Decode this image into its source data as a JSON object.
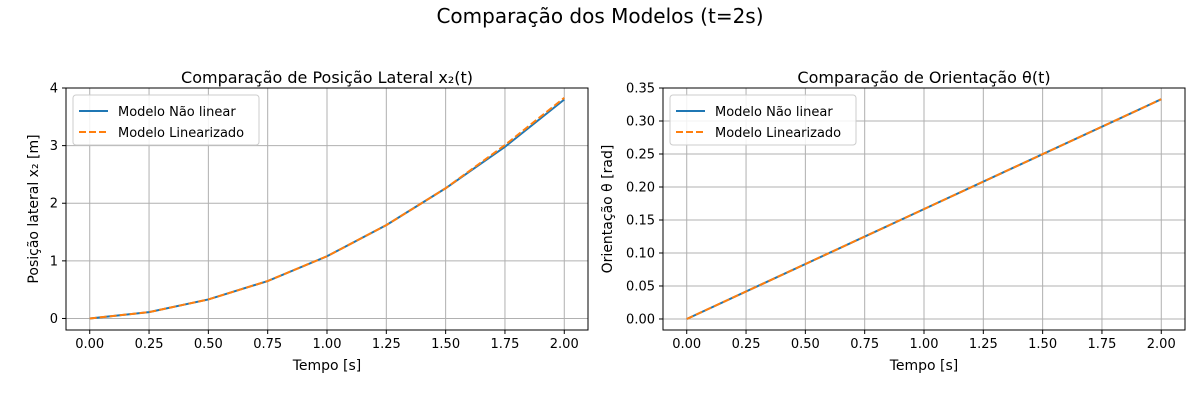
{
  "figure": {
    "title": "Comparação dos Modelos (t=2s)"
  },
  "colors": {
    "series_1": "#1f77b4",
    "series_2": "#ff7f0e",
    "grid": "#b0b0b0",
    "axes": "#000000"
  },
  "chart_data": [
    {
      "type": "line",
      "title": "Comparação de Posição Lateral x₂(t)",
      "xlabel": "Tempo [s]",
      "ylabel": "Posição lateral x₂ [m]",
      "xlim": [
        -0.1,
        2.1
      ],
      "ylim": [
        -0.2,
        4.0
      ],
      "xticks": [
        0.0,
        0.25,
        0.5,
        0.75,
        1.0,
        1.25,
        1.5,
        1.75,
        2.0
      ],
      "xtick_labels": [
        "0.00",
        "0.25",
        "0.50",
        "0.75",
        "1.00",
        "1.25",
        "1.50",
        "1.75",
        "2.00"
      ],
      "yticks": [
        0,
        1,
        2,
        3,
        4
      ],
      "ytick_labels": [
        "0",
        "1",
        "2",
        "3",
        "4"
      ],
      "grid": true,
      "legend_position": "top-left",
      "x": [
        0.0,
        0.25,
        0.5,
        0.75,
        1.0,
        1.25,
        1.5,
        1.75,
        2.0
      ],
      "series": [
        {
          "name": "Modelo Não linear",
          "style": "solid",
          "values": [
            0.0,
            0.11,
            0.33,
            0.65,
            1.08,
            1.62,
            2.26,
            2.98,
            3.8
          ]
        },
        {
          "name": "Modelo Linearizado",
          "style": "dashed",
          "values": [
            0.0,
            0.11,
            0.33,
            0.65,
            1.08,
            1.62,
            2.26,
            3.01,
            3.83
          ]
        }
      ]
    },
    {
      "type": "line",
      "title": "Comparação de Orientação θ(t)",
      "xlabel": "Tempo [s]",
      "ylabel": "Orientação θ [rad]",
      "xlim": [
        -0.1,
        2.1
      ],
      "ylim": [
        -0.0167,
        0.35
      ],
      "xticks": [
        0.0,
        0.25,
        0.5,
        0.75,
        1.0,
        1.25,
        1.5,
        1.75,
        2.0
      ],
      "xtick_labels": [
        "0.00",
        "0.25",
        "0.50",
        "0.75",
        "1.00",
        "1.25",
        "1.50",
        "1.75",
        "2.00"
      ],
      "yticks": [
        0.0,
        0.05,
        0.1,
        0.15,
        0.2,
        0.25,
        0.3,
        0.35
      ],
      "ytick_labels": [
        "0.00",
        "0.05",
        "0.10",
        "0.15",
        "0.20",
        "0.25",
        "0.30",
        "0.35"
      ],
      "grid": true,
      "legend_position": "top-left",
      "x": [
        0.0,
        2.0
      ],
      "series": [
        {
          "name": "Modelo Não linear",
          "style": "solid",
          "values": [
            0.0,
            0.333
          ]
        },
        {
          "name": "Modelo Linearizado",
          "style": "dashed",
          "values": [
            0.0,
            0.333
          ]
        }
      ]
    }
  ]
}
